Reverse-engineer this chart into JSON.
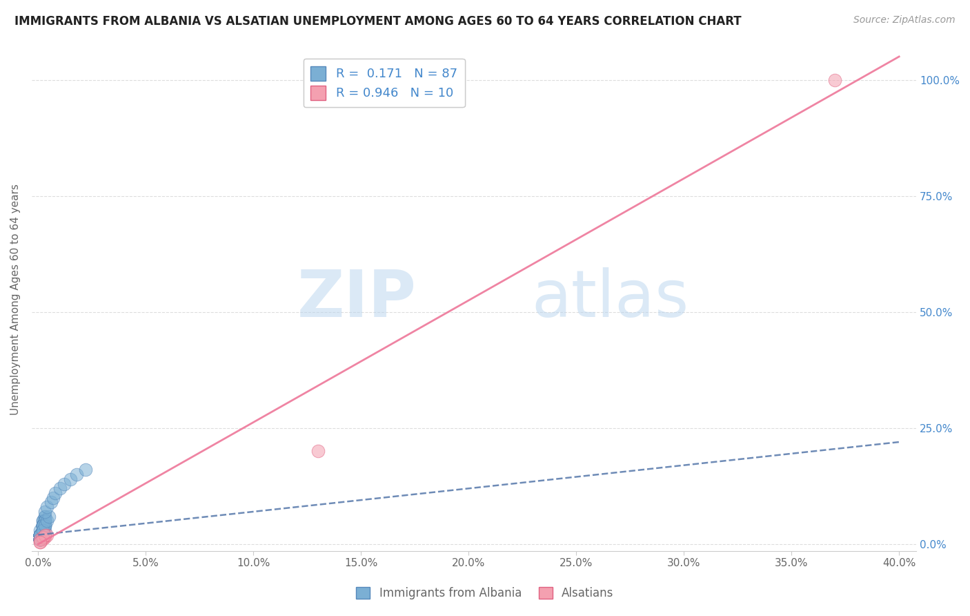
{
  "title": "IMMIGRANTS FROM ALBANIA VS ALSATIAN UNEMPLOYMENT AMONG AGES 60 TO 64 YEARS CORRELATION CHART",
  "source": "Source: ZipAtlas.com",
  "xlabel_ticks": [
    "0.0%",
    "5.0%",
    "10.0%",
    "15.0%",
    "20.0%",
    "25.0%",
    "30.0%",
    "35.0%",
    "40.0%"
  ],
  "xlabel_vals": [
    0.0,
    0.05,
    0.1,
    0.15,
    0.2,
    0.25,
    0.3,
    0.35,
    0.4
  ],
  "ylabel_ticks": [
    "0.0%",
    "25.0%",
    "50.0%",
    "75.0%",
    "100.0%"
  ],
  "ylabel_vals": [
    0.0,
    0.25,
    0.5,
    0.75,
    1.0
  ],
  "ylabel_label": "Unemployment Among Ages 60 to 64 years",
  "xlim": [
    -0.003,
    0.408
  ],
  "ylim": [
    -0.015,
    1.07
  ],
  "watermark_zip": "ZIP",
  "watermark_atlas": "atlas",
  "legend1_label": "Immigrants from Albania",
  "legend2_label": "Alsatians",
  "R1": 0.171,
  "N1": 87,
  "R2": 0.946,
  "N2": 10,
  "blue_color": "#7BAFD4",
  "pink_color": "#F4A0B0",
  "blue_edge_color": "#5588BB",
  "pink_edge_color": "#E06080",
  "blue_line_color": "#5577AA",
  "pink_line_color": "#EE7799",
  "title_color": "#222222",
  "axis_label_color": "#666666",
  "tick_color_right": "#4488CC",
  "grid_color": "#DDDDDD",
  "background_color": "#FFFFFF",
  "blue_scatter_x": [
    0.001,
    0.002,
    0.001,
    0.003,
    0.001,
    0.002,
    0.003,
    0.001,
    0.002,
    0.001,
    0.001,
    0.002,
    0.001,
    0.003,
    0.001,
    0.002,
    0.001,
    0.002,
    0.001,
    0.003,
    0.001,
    0.002,
    0.001,
    0.001,
    0.002,
    0.001,
    0.003,
    0.001,
    0.002,
    0.001,
    0.001,
    0.002,
    0.001,
    0.003,
    0.001,
    0.002,
    0.001,
    0.002,
    0.001,
    0.001,
    0.002,
    0.001,
    0.001,
    0.002,
    0.001,
    0.003,
    0.001,
    0.002,
    0.001,
    0.001,
    0.002,
    0.001,
    0.003,
    0.001,
    0.002,
    0.001,
    0.001,
    0.002,
    0.001,
    0.002,
    0.001,
    0.003,
    0.001,
    0.002,
    0.001,
    0.001,
    0.002,
    0.001,
    0.003,
    0.001,
    0.002,
    0.001,
    0.001,
    0.002,
    0.003,
    0.004,
    0.005,
    0.003,
    0.004,
    0.006,
    0.007,
    0.008,
    0.01,
    0.012,
    0.015,
    0.018,
    0.022
  ],
  "blue_scatter_y": [
    0.02,
    0.03,
    0.01,
    0.04,
    0.02,
    0.05,
    0.03,
    0.01,
    0.04,
    0.02,
    0.01,
    0.03,
    0.02,
    0.05,
    0.01,
    0.04,
    0.02,
    0.03,
    0.01,
    0.04,
    0.02,
    0.05,
    0.01,
    0.03,
    0.04,
    0.01,
    0.06,
    0.02,
    0.03,
    0.01,
    0.02,
    0.04,
    0.01,
    0.05,
    0.02,
    0.03,
    0.01,
    0.04,
    0.02,
    0.01,
    0.03,
    0.02,
    0.01,
    0.04,
    0.02,
    0.05,
    0.01,
    0.03,
    0.02,
    0.01,
    0.04,
    0.02,
    0.06,
    0.01,
    0.03,
    0.02,
    0.01,
    0.04,
    0.02,
    0.03,
    0.01,
    0.05,
    0.02,
    0.04,
    0.01,
    0.02,
    0.03,
    0.01,
    0.05,
    0.02,
    0.04,
    0.01,
    0.02,
    0.03,
    0.04,
    0.05,
    0.06,
    0.07,
    0.08,
    0.09,
    0.1,
    0.11,
    0.12,
    0.13,
    0.14,
    0.15,
    0.16
  ],
  "pink_scatter_x": [
    0.001,
    0.002,
    0.003,
    0.004,
    0.001,
    0.002,
    0.003,
    0.001,
    0.13,
    0.37
  ],
  "pink_scatter_y": [
    0.005,
    0.01,
    0.015,
    0.02,
    0.01,
    0.015,
    0.02,
    0.005,
    0.2,
    1.0
  ],
  "blue_trend_x": [
    0.0,
    0.4
  ],
  "blue_trend_y": [
    0.02,
    0.22
  ],
  "pink_trend_x": [
    0.0,
    0.4
  ],
  "pink_trend_y": [
    0.0,
    1.05
  ]
}
